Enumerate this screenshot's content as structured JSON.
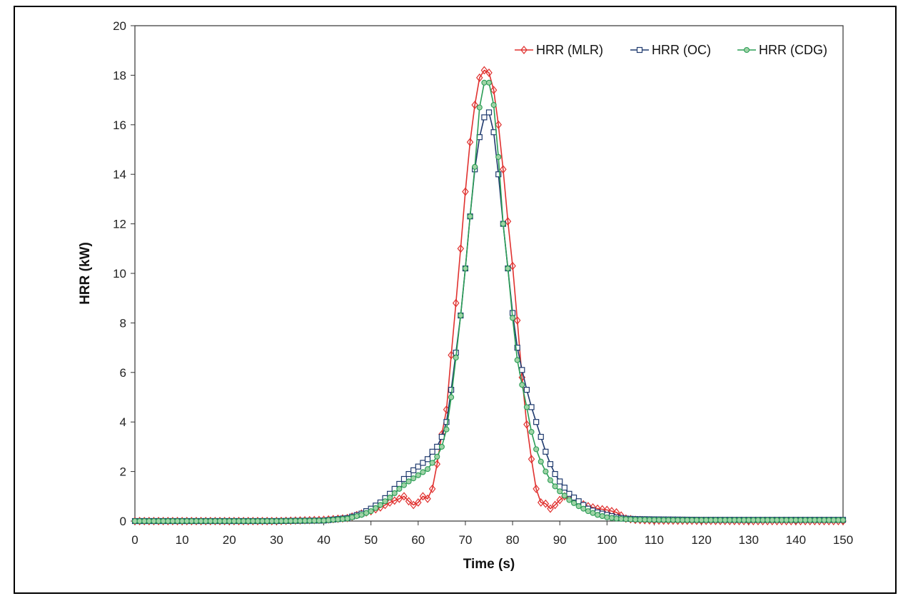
{
  "chart_data": {
    "type": "line",
    "title": "",
    "xlabel": "Time (s)",
    "ylabel": "HRR (kW)",
    "xlim": [
      0,
      150
    ],
    "ylim": [
      0,
      20
    ],
    "xticks": [
      0,
      10,
      20,
      30,
      40,
      50,
      60,
      70,
      80,
      90,
      100,
      110,
      120,
      130,
      140,
      150
    ],
    "yticks": [
      0,
      2,
      4,
      6,
      8,
      10,
      12,
      14,
      16,
      18,
      20
    ],
    "grid": false,
    "legend_position": "top-right",
    "series": [
      {
        "name": "HRR (MLR)",
        "color": "#e0312f",
        "marker": "diamond",
        "points": [
          [
            0,
            0
          ],
          [
            10,
            0
          ],
          [
            20,
            0
          ],
          [
            30,
            0
          ],
          [
            40,
            0.05
          ],
          [
            45,
            0.12
          ],
          [
            48,
            0.3
          ],
          [
            50,
            0.4
          ],
          [
            52,
            0.55
          ],
          [
            54,
            0.75
          ],
          [
            56,
            0.9
          ],
          [
            57,
            1.0
          ],
          [
            58,
            0.8
          ],
          [
            59,
            0.65
          ],
          [
            60,
            0.75
          ],
          [
            61,
            1.0
          ],
          [
            62,
            0.9
          ],
          [
            63,
            1.3
          ],
          [
            64,
            2.3
          ],
          [
            65,
            3.5
          ],
          [
            66,
            4.5
          ],
          [
            67,
            6.7
          ],
          [
            68,
            8.8
          ],
          [
            69,
            11.0
          ],
          [
            70,
            13.3
          ],
          [
            71,
            15.3
          ],
          [
            72,
            16.8
          ],
          [
            73,
            17.9
          ],
          [
            74,
            18.2
          ],
          [
            75,
            18.1
          ],
          [
            76,
            17.4
          ],
          [
            77,
            16.0
          ],
          [
            78,
            14.2
          ],
          [
            79,
            12.1
          ],
          [
            80,
            10.3
          ],
          [
            81,
            8.1
          ],
          [
            82,
            5.8
          ],
          [
            83,
            3.9
          ],
          [
            84,
            2.5
          ],
          [
            85,
            1.3
          ],
          [
            86,
            0.75
          ],
          [
            87,
            0.7
          ],
          [
            88,
            0.5
          ],
          [
            89,
            0.65
          ],
          [
            90,
            0.85
          ],
          [
            91,
            1.0
          ],
          [
            92,
            0.9
          ],
          [
            94,
            0.75
          ],
          [
            96,
            0.6
          ],
          [
            98,
            0.5
          ],
          [
            100,
            0.45
          ],
          [
            102,
            0.35
          ],
          [
            104,
            0.1
          ],
          [
            106,
            0.05
          ],
          [
            110,
            0.02
          ],
          [
            120,
            0.01
          ],
          [
            130,
            0.0
          ],
          [
            140,
            0.0
          ],
          [
            150,
            0.0
          ]
        ]
      },
      {
        "name": "HRR (OC)",
        "color": "#1f3a6e",
        "marker": "square",
        "points": [
          [
            0,
            0
          ],
          [
            10,
            0
          ],
          [
            20,
            0
          ],
          [
            30,
            0
          ],
          [
            40,
            0.02
          ],
          [
            45,
            0.12
          ],
          [
            48,
            0.3
          ],
          [
            50,
            0.5
          ],
          [
            52,
            0.75
          ],
          [
            54,
            1.1
          ],
          [
            56,
            1.5
          ],
          [
            58,
            1.9
          ],
          [
            60,
            2.2
          ],
          [
            62,
            2.5
          ],
          [
            63,
            2.8
          ],
          [
            64,
            3.0
          ],
          [
            65,
            3.4
          ],
          [
            66,
            4.0
          ],
          [
            67,
            5.3
          ],
          [
            68,
            6.8
          ],
          [
            69,
            8.3
          ],
          [
            70,
            10.2
          ],
          [
            71,
            12.3
          ],
          [
            72,
            14.2
          ],
          [
            73,
            15.5
          ],
          [
            74,
            16.3
          ],
          [
            75,
            16.5
          ],
          [
            76,
            15.7
          ],
          [
            77,
            14.0
          ],
          [
            78,
            12.0
          ],
          [
            79,
            10.2
          ],
          [
            80,
            8.4
          ],
          [
            81,
            7.0
          ],
          [
            82,
            6.1
          ],
          [
            83,
            5.3
          ],
          [
            84,
            4.6
          ],
          [
            85,
            4.0
          ],
          [
            86,
            3.4
          ],
          [
            87,
            2.8
          ],
          [
            88,
            2.3
          ],
          [
            89,
            1.9
          ],
          [
            90,
            1.6
          ],
          [
            92,
            1.1
          ],
          [
            94,
            0.8
          ],
          [
            96,
            0.5
          ],
          [
            98,
            0.35
          ],
          [
            100,
            0.25
          ],
          [
            102,
            0.15
          ],
          [
            104,
            0.1
          ],
          [
            106,
            0.08
          ],
          [
            110,
            0.07
          ],
          [
            115,
            0.06
          ],
          [
            120,
            0.05
          ],
          [
            130,
            0.05
          ],
          [
            140,
            0.05
          ],
          [
            150,
            0.05
          ]
        ]
      },
      {
        "name": "HRR (CDG)",
        "color": "#2a9d55",
        "marker": "circle",
        "points": [
          [
            0,
            0
          ],
          [
            10,
            0
          ],
          [
            20,
            0
          ],
          [
            30,
            0
          ],
          [
            40,
            0.02
          ],
          [
            45,
            0.1
          ],
          [
            48,
            0.25
          ],
          [
            50,
            0.4
          ],
          [
            52,
            0.65
          ],
          [
            54,
            0.95
          ],
          [
            56,
            1.3
          ],
          [
            58,
            1.6
          ],
          [
            60,
            1.85
          ],
          [
            62,
            2.1
          ],
          [
            64,
            2.6
          ],
          [
            65,
            3.0
          ],
          [
            66,
            3.7
          ],
          [
            67,
            5.0
          ],
          [
            68,
            6.6
          ],
          [
            69,
            8.3
          ],
          [
            70,
            10.2
          ],
          [
            71,
            12.3
          ],
          [
            72,
            14.3
          ],
          [
            73,
            16.7
          ],
          [
            74,
            17.7
          ],
          [
            75,
            17.7
          ],
          [
            76,
            16.8
          ],
          [
            77,
            14.7
          ],
          [
            78,
            12.0
          ],
          [
            79,
            10.2
          ],
          [
            80,
            8.2
          ],
          [
            81,
            6.5
          ],
          [
            82,
            5.5
          ],
          [
            83,
            4.6
          ],
          [
            84,
            3.6
          ],
          [
            85,
            2.9
          ],
          [
            86,
            2.4
          ],
          [
            87,
            2.0
          ],
          [
            88,
            1.65
          ],
          [
            89,
            1.4
          ],
          [
            90,
            1.2
          ],
          [
            92,
            0.85
          ],
          [
            94,
            0.6
          ],
          [
            96,
            0.4
          ],
          [
            98,
            0.25
          ],
          [
            100,
            0.15
          ],
          [
            102,
            0.1
          ],
          [
            104,
            0.08
          ],
          [
            106,
            0.06
          ],
          [
            110,
            0.05
          ],
          [
            115,
            0.04
          ],
          [
            120,
            0.04
          ],
          [
            130,
            0.04
          ],
          [
            140,
            0.04
          ],
          [
            150,
            0.04
          ]
        ]
      }
    ]
  }
}
